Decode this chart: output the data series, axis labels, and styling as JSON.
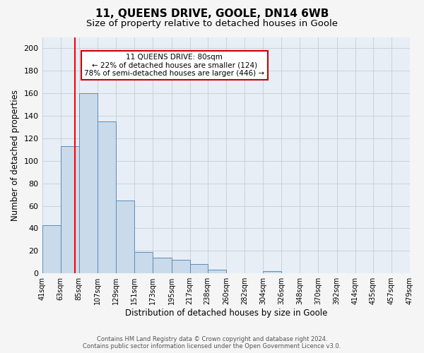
{
  "title": "11, QUEENS DRIVE, GOOLE, DN14 6WB",
  "subtitle": "Size of property relative to detached houses in Goole",
  "xlabel": "Distribution of detached houses by size in Goole",
  "ylabel": "Number of detached properties",
  "bar_edges": [
    41,
    63,
    85,
    107,
    129,
    151,
    173,
    195,
    217,
    238,
    260,
    282,
    304,
    326,
    348,
    370,
    392,
    414,
    435,
    457,
    479
  ],
  "bar_heights": [
    43,
    113,
    160,
    135,
    65,
    19,
    14,
    12,
    8,
    3,
    0,
    0,
    2,
    0,
    0,
    0,
    0,
    0,
    0,
    0
  ],
  "bar_color": "#c9daea",
  "bar_edge_color": "#5b8db8",
  "red_line_x": 80,
  "ylim": [
    0,
    210
  ],
  "yticks": [
    0,
    20,
    40,
    60,
    80,
    100,
    120,
    140,
    160,
    180,
    200
  ],
  "annotation_title": "11 QUEENS DRIVE: 80sqm",
  "annotation_line1": "← 22% of detached houses are smaller (124)",
  "annotation_line2": "78% of semi-detached houses are larger (446) →",
  "annotation_box_color": "#ffffff",
  "annotation_box_edge_color": "#cc0000",
  "fig_bg_color": "#f5f5f5",
  "plot_bg_color": "#e8eef6",
  "grid_color": "#c5cdd8",
  "footer_line1": "Contains HM Land Registry data © Crown copyright and database right 2024.",
  "footer_line2": "Contains public sector information licensed under the Open Government Licence v3.0.",
  "title_fontsize": 11,
  "subtitle_fontsize": 9.5,
  "xlabel_fontsize": 8.5,
  "ylabel_fontsize": 8.5,
  "tick_fontsize": 7,
  "annotation_fontsize": 7.5,
  "footer_fontsize": 6
}
